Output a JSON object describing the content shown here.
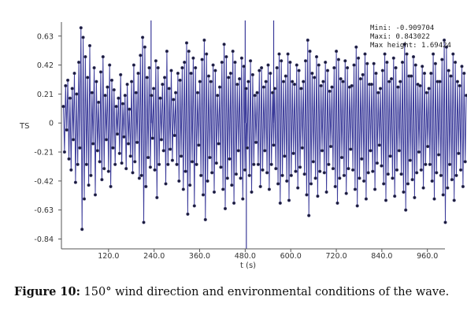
{
  "chart_data": {
    "type": "line",
    "title": "",
    "xlabel": "t (s)",
    "ylabel": "TS",
    "xlim": [
      0,
      1000
    ],
    "ylim": [
      -0.9,
      0.72
    ],
    "x_ticks": [
      "120.0",
      "240.0",
      "360.0",
      "480.0",
      "600.0",
      "720.0",
      "840.0",
      "960.0"
    ],
    "y_ticks": [
      "0.63",
      "0.42",
      "0.21",
      "0",
      "-0.21",
      "-0.42",
      "-0.63",
      "-0.84"
    ],
    "stats": {
      "mini": "Mini: -0.909704",
      "maxi": "Maxi: 0.843022",
      "max_height": "Max height: 1.69424"
    },
    "series_color": "#3b3b9a",
    "marker_color": "#1a1a3a",
    "series": [
      {
        "t_start": 1,
        "t_step": 2.9,
        "values": [
          0.12,
          -0.21,
          0.27,
          -0.05,
          0.31,
          -0.26,
          0.18,
          -0.34,
          0.25,
          -0.12,
          0.36,
          -0.43,
          0.21,
          -0.3,
          0.44,
          -0.18,
          0.69,
          -0.77,
          0.62,
          -0.55,
          0.48,
          -0.3,
          0.33,
          -0.45,
          0.56,
          -0.38,
          0.22,
          -0.15,
          0.4,
          -0.52,
          0.3,
          -0.2,
          0.15,
          -0.28,
          0.37,
          -0.41,
          0.48,
          -0.33,
          0.2,
          -0.12,
          0.26,
          -0.35,
          0.42,
          -0.46,
          0.31,
          -0.18,
          0.24,
          -0.3,
          0.12,
          -0.08,
          0.18,
          -0.22,
          0.35,
          -0.29,
          0.14,
          -0.1,
          0.2,
          -0.33,
          0.28,
          -0.15,
          0.1,
          -0.24,
          0.3,
          -0.36,
          0.42,
          -0.28,
          0.22,
          -0.14,
          0.36,
          -0.4,
          0.49,
          -0.38,
          0.62,
          -0.72,
          0.55,
          -0.46,
          0.33,
          -0.25,
          0.4,
          -0.32,
          0.2,
          -0.11,
          0.25,
          -0.34,
          0.45,
          -0.54,
          0.4,
          -0.3,
          0.18,
          -0.12,
          0.28,
          -0.2,
          0.33,
          -0.44,
          0.52,
          -0.3,
          0.25,
          -0.19,
          0.38,
          -0.27,
          0.17,
          -0.09,
          0.22,
          -0.3,
          0.36,
          -0.42,
          0.31,
          -0.24,
          0.4,
          -0.48,
          0.44,
          -0.35,
          0.58,
          -0.66,
          0.52,
          -0.45,
          0.36,
          -0.28,
          0.47,
          -0.6,
          0.4,
          -0.3,
          0.22,
          -0.16,
          0.3,
          -0.38,
          0.46,
          -0.52,
          0.6,
          -0.7,
          0.5,
          -0.42,
          0.34,
          -0.25,
          0.3,
          -0.36,
          0.42,
          -0.5,
          0.38,
          -0.29,
          0.2,
          -0.15,
          0.26,
          -0.32,
          0.44,
          -0.48,
          0.57,
          -0.62,
          0.48,
          -0.4,
          0.33,
          -0.26,
          0.36,
          -0.45,
          0.52,
          -0.58,
          0.44,
          -0.37,
          0.28,
          -0.2,
          0.32,
          -0.4,
          0.47,
          -0.55,
          0.41,
          -0.34,
          0.25,
          -0.18,
          0.3,
          -0.38,
          0.45,
          -0.5,
          0.35,
          -0.3,
          0.2,
          -0.14,
          0.22,
          -0.3,
          0.38,
          -0.46,
          0.4,
          -0.34,
          0.26,
          -0.2,
          0.3,
          -0.36,
          0.42,
          -0.48,
          0.36,
          -0.3,
          0.22,
          -0.16,
          0.25,
          -0.33,
          0.4,
          -0.44,
          0.5,
          -0.58,
          0.45,
          -0.38,
          0.3,
          -0.24,
          0.34,
          -0.42,
          0.5,
          -0.56,
          0.44,
          -0.38,
          0.3,
          -0.22,
          0.28,
          -0.35,
          0.42,
          -0.47,
          0.38,
          -0.32,
          0.25,
          -0.18,
          0.3,
          -0.37,
          0.45,
          -0.52,
          0.6,
          -0.67,
          0.52,
          -0.44,
          0.36,
          -0.28,
          0.33,
          -0.4,
          0.48,
          -0.53,
          0.42,
          -0.35,
          0.27,
          -0.2,
          0.3,
          -0.36,
          0.44,
          -0.5,
          0.38,
          -0.3,
          0.23,
          -0.17,
          0.26,
          -0.33,
          0.4,
          -0.46,
          0.52,
          -0.58,
          0.46,
          -0.4,
          0.32,
          -0.25,
          0.3,
          -0.38,
          0.45,
          -0.51,
          0.4,
          -0.33,
          0.26,
          -0.19,
          0.27,
          -0.34,
          0.42,
          -0.48,
          0.55,
          -0.6,
          0.47,
          -0.4,
          0.32,
          -0.26,
          0.35,
          -0.42,
          0.5,
          -0.55,
          0.43,
          -0.36,
          0.28,
          -0.2,
          0.28,
          -0.35,
          0.43,
          -0.48,
          0.36,
          -0.29,
          0.22,
          -0.16,
          0.25,
          -0.31,
          0.38,
          -0.44,
          0.5,
          -0.56,
          0.44,
          -0.37,
          0.3,
          -0.24,
          0.32,
          -0.4,
          0.47,
          -0.53,
          0.4,
          -0.34,
          0.26,
          -0.2,
          0.3,
          -0.37,
          0.44,
          -0.5,
          0.57,
          -0.63,
          0.5,
          -0.44,
          0.34,
          -0.27,
          0.34,
          -0.41,
          0.48,
          -0.54,
          0.42,
          -0.36,
          0.28,
          -0.21,
          0.27,
          -0.34,
          0.41,
          -0.47,
          0.36,
          -0.3,
          0.22,
          -0.17,
          0.25,
          -0.3,
          0.36,
          -0.42,
          0.5,
          -0.55,
          0.43,
          -0.36,
          0.3,
          -0.23,
          0.3,
          -0.38,
          0.46,
          -0.52,
          0.6,
          -0.72,
          0.55,
          -0.47,
          0.38,
          -0.3,
          0.34,
          -0.41,
          0.5,
          -0.56,
          0.44,
          -0.38,
          0.3,
          -0.22,
          0.27,
          -0.34,
          0.41,
          -0.46,
          0.36,
          -0.28,
          0.2
        ]
      }
    ],
    "extremes": [
      {
        "x": 483,
        "y": -0.909704
      },
      {
        "x": 232,
        "y": 0.843022
      },
      {
        "x": 480,
        "y": 0.8
      },
      {
        "x": 555,
        "y": 0.82
      }
    ]
  },
  "caption": {
    "label": "Figure 10:",
    "text": " 150° wind direction and environmental conditions of the wave."
  }
}
